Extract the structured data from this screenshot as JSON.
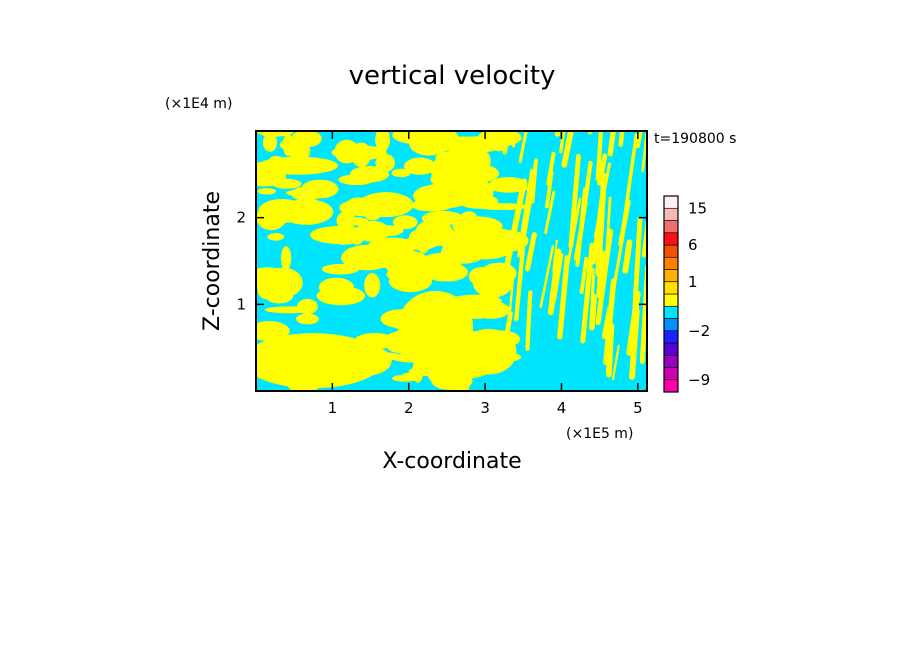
{
  "chart_data": {
    "type": "heatmap",
    "title": "vertical velocity",
    "xlabel": "X-coordinate",
    "ylabel": "Z-coordinate",
    "x_unit": "(×1E5 m)",
    "y_unit": "(×1E4 m)",
    "time_label": "t=190800 s",
    "xlim": [
      0,
      5.12
    ],
    "ylim": [
      0,
      3.0
    ],
    "x_ticks": [
      1,
      2,
      3,
      4,
      5
    ],
    "y_ticks": [
      1,
      2
    ],
    "x_tick_labels": [
      "1",
      "2",
      "3",
      "4",
      "5"
    ],
    "y_tick_labels": [
      "1",
      "2"
    ],
    "field_colors": {
      "negative": "#00e5ff",
      "positive": "#ffff00"
    },
    "colorbar": {
      "levels": [
        {
          "from": -12,
          "to": -9,
          "color": "#ff00a8"
        },
        {
          "from": -9,
          "to": -6,
          "color": "#d000b0"
        },
        {
          "from": -6,
          "to": -4,
          "color": "#9a00c0"
        },
        {
          "from": -4,
          "to": -3,
          "color": "#5a00d0"
        },
        {
          "from": -3,
          "to": -2,
          "color": "#1a20ff"
        },
        {
          "from": -2,
          "to": -1,
          "color": "#0090ff"
        },
        {
          "from": -1,
          "to": 0,
          "color": "#00e5ff"
        },
        {
          "from": 0,
          "to": 0.5,
          "color": "#ffff00"
        },
        {
          "from": 0.5,
          "to": 1,
          "color": "#ffe000"
        },
        {
          "from": 1,
          "to": 2,
          "color": "#ffb000"
        },
        {
          "from": 2,
          "to": 4,
          "color": "#ff8000"
        },
        {
          "from": 4,
          "to": 6,
          "color": "#f05000"
        },
        {
          "from": 6,
          "to": 9,
          "color": "#ff1010"
        },
        {
          "from": 9,
          "to": 12,
          "color": "#f07070"
        },
        {
          "from": 12,
          "to": 15,
          "color": "#f8b8b8"
        },
        {
          "from": 15,
          "to": 20,
          "color": "#fff0f0"
        }
      ],
      "tick_labels": [
        {
          "value": 15,
          "label": "15"
        },
        {
          "value": 6,
          "label": "6"
        },
        {
          "value": 1,
          "label": "1"
        },
        {
          "value": -2,
          "label": "−2"
        },
        {
          "value": -9,
          "label": "−9"
        }
      ]
    }
  }
}
